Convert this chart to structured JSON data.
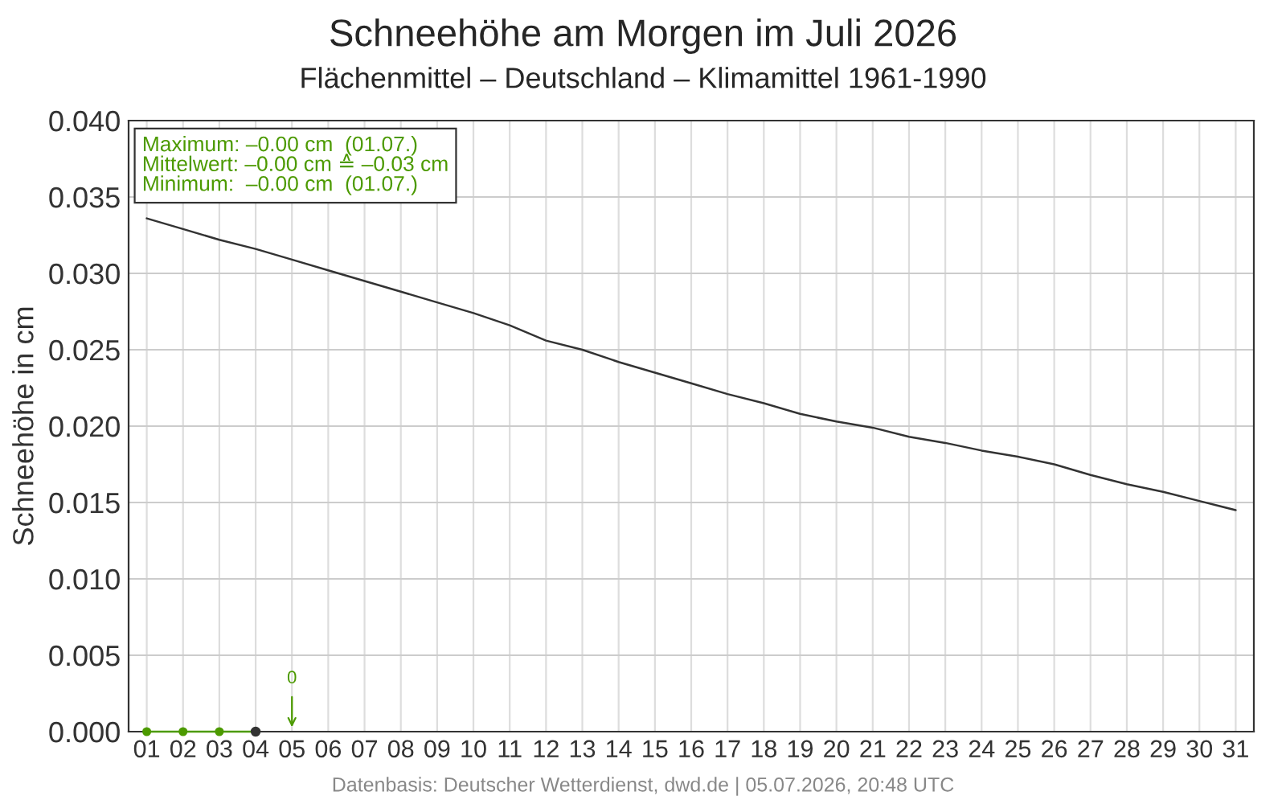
{
  "chart_data": {
    "type": "line",
    "title": "Schneehöhe am Morgen im Juli 2026",
    "subtitle": "Flächenmittel – Deutschland – Klimamittel 1961-1990",
    "ylabel": "Schneehöhe in cm",
    "categories": [
      "01",
      "02",
      "03",
      "04",
      "05",
      "06",
      "07",
      "08",
      "09",
      "10",
      "11",
      "12",
      "13",
      "14",
      "15",
      "16",
      "17",
      "18",
      "19",
      "20",
      "21",
      "22",
      "23",
      "24",
      "25",
      "26",
      "27",
      "28",
      "29",
      "30",
      "31"
    ],
    "series": [
      {
        "color": "#333333",
        "marker": "none",
        "values": [
          0.0336,
          0.0329,
          0.0322,
          0.0316,
          0.0309,
          0.0302,
          0.0295,
          0.0288,
          0.0281,
          0.0274,
          0.0266,
          0.0256,
          0.025,
          0.0242,
          0.0235,
          0.0228,
          0.0221,
          0.0215,
          0.0208,
          0.0203,
          0.0199,
          0.0193,
          0.0189,
          0.0184,
          0.018,
          0.0175,
          0.0168,
          0.0162,
          0.0157,
          0.0151,
          0.0145
        ]
      },
      {
        "color": "#4c9a00",
        "marker": "circle",
        "values": [
          0,
          0,
          0,
          0,
          null,
          null,
          null,
          null,
          null,
          null,
          null,
          null,
          null,
          null,
          null,
          null,
          null,
          null,
          null,
          null,
          null,
          null,
          null,
          null,
          null,
          null,
          null,
          null,
          null,
          null,
          null
        ]
      },
      {
        "type": "scatter",
        "color": "#333333",
        "marker": "circle",
        "x": [
          "04"
        ],
        "values": [
          0
        ]
      }
    ],
    "ylim": [
      0,
      0.04
    ],
    "yticks": [
      {
        "value": 0,
        "label": "0.000"
      },
      {
        "value": 0.005,
        "label": "0.005"
      },
      {
        "value": 0.01,
        "label": "0.010"
      },
      {
        "value": 0.015,
        "label": "0.015"
      },
      {
        "value": 0.02,
        "label": "0.020"
      },
      {
        "value": 0.025,
        "label": "0.025"
      },
      {
        "value": 0.03,
        "label": "0.030"
      },
      {
        "value": 0.035,
        "label": "0.035"
      },
      {
        "value": 0.04,
        "label": "0.040"
      }
    ],
    "grid": true,
    "annotations": [
      "Maximum: –0.00 cm  (01.07.)\nMittelwert: –0.00 cm ≙ –0.03 cm\nMinimum:  –0.00 cm  (01.07.)",
      "0",
      "Datenbasis: Deutscher Wetterdienst, dwd.de | 05.07.2026, 20:48 UTC"
    ]
  }
}
